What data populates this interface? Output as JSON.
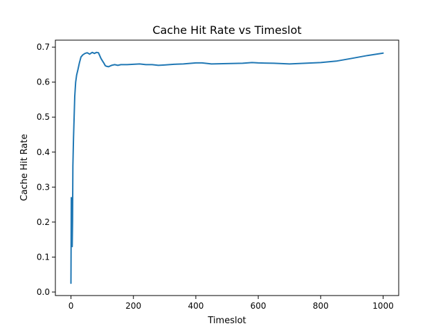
{
  "chart_data": {
    "type": "line",
    "title": "Cache Hit Rate vs Timeslot",
    "xlabel": "Timeslot",
    "ylabel": "Cache Hit Rate",
    "xlim": [
      -50,
      1050
    ],
    "ylim": [
      -0.01,
      0.72
    ],
    "xticks": [
      0,
      200,
      400,
      600,
      800,
      1000
    ],
    "yticks": [
      0.0,
      0.1,
      0.2,
      0.3,
      0.4,
      0.5,
      0.6,
      0.7
    ],
    "xtick_labels": [
      "0",
      "200",
      "400",
      "600",
      "800",
      "1000"
    ],
    "ytick_labels": [
      "0.0",
      "0.1",
      "0.2",
      "0.3",
      "0.4",
      "0.5",
      "0.6",
      "0.7"
    ],
    "grid": false,
    "line_color": "#1f77b4",
    "series": [
      {
        "x": [
          0,
          1,
          2,
          3,
          4,
          5,
          6,
          8,
          10,
          12,
          15,
          18,
          22,
          27,
          32,
          38,
          45,
          52,
          60,
          68,
          75,
          82,
          88,
          92,
          96,
          100,
          105,
          110,
          115,
          120,
          130,
          140,
          150,
          160,
          180,
          200,
          220,
          240,
          260,
          280,
          300,
          330,
          360,
          400,
          420,
          450,
          500,
          550,
          580,
          600,
          650,
          700,
          750,
          800,
          850,
          900,
          950,
          1000
        ],
        "y": [
          0.025,
          0.27,
          0.15,
          0.25,
          0.13,
          0.2,
          0.36,
          0.44,
          0.5,
          0.56,
          0.6,
          0.62,
          0.635,
          0.655,
          0.672,
          0.678,
          0.682,
          0.684,
          0.68,
          0.685,
          0.682,
          0.685,
          0.684,
          0.676,
          0.668,
          0.662,
          0.655,
          0.647,
          0.645,
          0.644,
          0.648,
          0.65,
          0.648,
          0.65,
          0.65,
          0.651,
          0.652,
          0.65,
          0.65,
          0.648,
          0.649,
          0.651,
          0.652,
          0.655,
          0.655,
          0.652,
          0.653,
          0.654,
          0.656,
          0.655,
          0.654,
          0.652,
          0.654,
          0.656,
          0.66,
          0.668,
          0.676,
          0.683
        ]
      }
    ]
  }
}
